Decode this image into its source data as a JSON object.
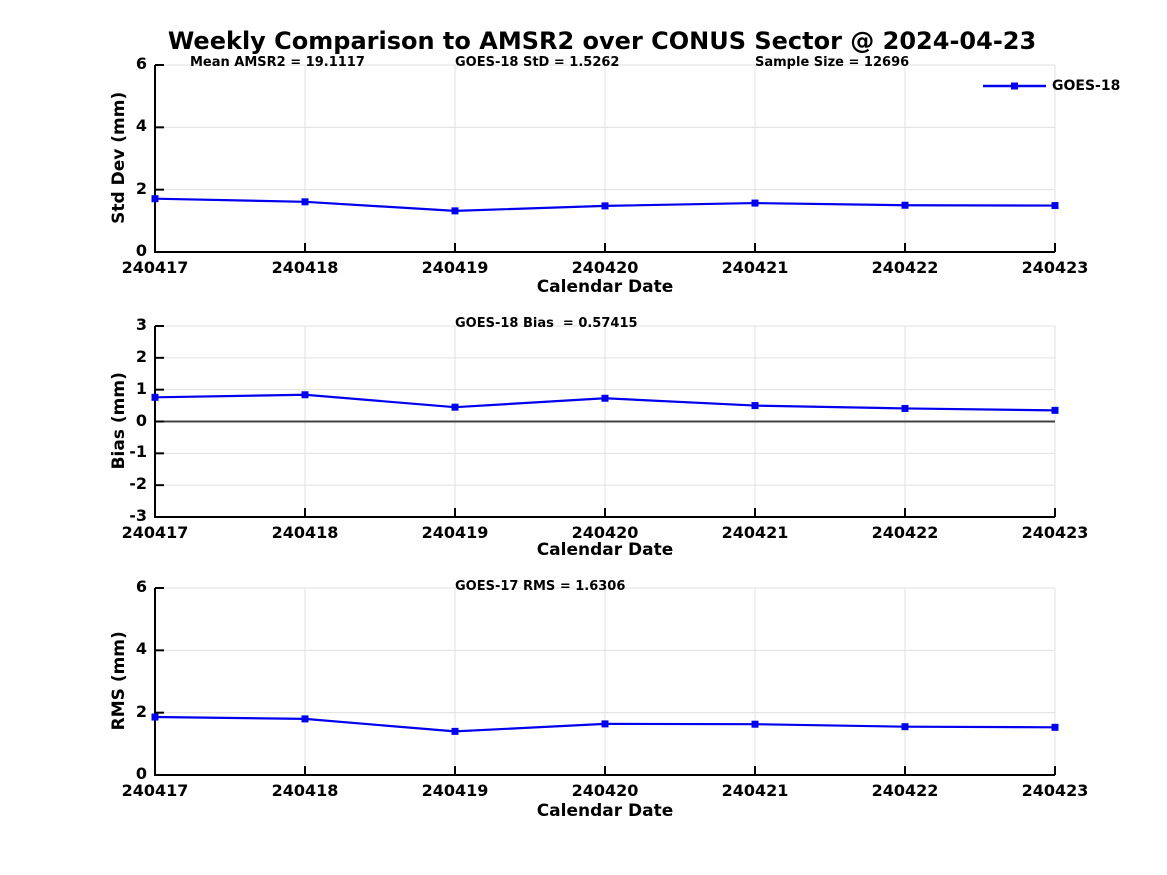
{
  "title": "Weekly Comparison to AMSR2 over CONUS Sector @ 2024-04-23",
  "legend": {
    "label": "GOES-18"
  },
  "colors": {
    "line": "#0000ee",
    "marker": "#0000ee",
    "grid": "#e0e0e0",
    "zero_line": "#404040",
    "spine": "#000000",
    "text": "#000000"
  },
  "chart_data": [
    {
      "type": "line",
      "panel": "std-dev",
      "ylabel": "Std Dev (mm)",
      "xlabel": "Calendar Date",
      "categories": [
        "240417",
        "240418",
        "240419",
        "240420",
        "240421",
        "240422",
        "240423"
      ],
      "series": [
        {
          "name": "GOES-18",
          "values": [
            1.71,
            1.61,
            1.32,
            1.48,
            1.57,
            1.5,
            1.49
          ]
        }
      ],
      "ylim": [
        0,
        6
      ],
      "yticks": [
        "0",
        "2",
        "4",
        "6"
      ],
      "grid": true,
      "legend_position": "top-right-outside",
      "annotations": [
        {
          "text": "Mean AMSR2 = 19.1117"
        },
        {
          "text": "GOES-18 StD = 1.5262"
        },
        {
          "text": "Sample Size = 12696"
        }
      ]
    },
    {
      "type": "line",
      "panel": "bias",
      "ylabel": "Bias (mm)",
      "xlabel": "Calendar Date",
      "categories": [
        "240417",
        "240418",
        "240419",
        "240420",
        "240421",
        "240422",
        "240423"
      ],
      "series": [
        {
          "name": "GOES-18",
          "values": [
            0.76,
            0.84,
            0.45,
            0.73,
            0.5,
            0.41,
            0.35
          ]
        }
      ],
      "ylim": [
        -3,
        3
      ],
      "yticks": [
        "-3",
        "-2",
        "-1",
        "0",
        "1",
        "2",
        "3"
      ],
      "grid": true,
      "zero_line": true,
      "annotations": [
        {
          "text": "GOES-18 Bias  = 0.57415"
        }
      ]
    },
    {
      "type": "line",
      "panel": "rms",
      "ylabel": "RMS (mm)",
      "xlabel": "Calendar Date",
      "categories": [
        "240417",
        "240418",
        "240419",
        "240420",
        "240421",
        "240422",
        "240423"
      ],
      "series": [
        {
          "name": "GOES-18",
          "values": [
            1.86,
            1.8,
            1.4,
            1.64,
            1.63,
            1.55,
            1.53
          ]
        }
      ],
      "ylim": [
        0,
        6
      ],
      "yticks": [
        "0",
        "2",
        "4",
        "6"
      ],
      "grid": true,
      "annotations": [
        {
          "text": "GOES-17 RMS = 1.6306"
        }
      ]
    }
  ]
}
